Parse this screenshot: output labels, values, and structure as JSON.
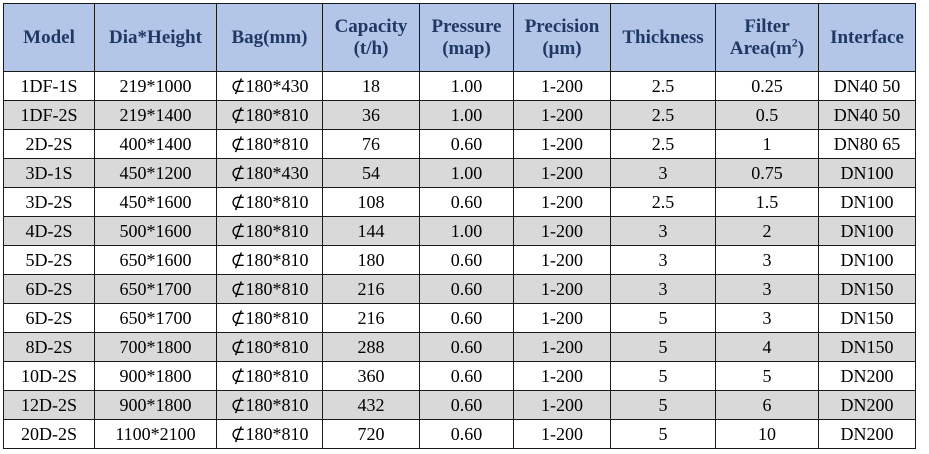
{
  "table": {
    "headers": [
      {
        "line1": "Model",
        "line2": ""
      },
      {
        "line1": "Dia*Height",
        "line2": ""
      },
      {
        "line1": "Bag(mm)",
        "line2": ""
      },
      {
        "line1": "Capacity",
        "line2": "(t/h)"
      },
      {
        "line1": "Pressure",
        "line2": "(map)"
      },
      {
        "line1": "Precision",
        "line2": "(μm)"
      },
      {
        "line1": "Thickness",
        "line2": ""
      },
      {
        "line1": "Filter",
        "line2": "Area(m",
        "sup": "2",
        "tail": ")"
      },
      {
        "line1": "Interface",
        "line2": ""
      }
    ],
    "rows": [
      [
        "1DF-1S",
        "219*1000",
        "⊄180*430",
        "18",
        "1.00",
        "1-200",
        "2.5",
        "0.25",
        "DN40  50"
      ],
      [
        "1DF-2S",
        "219*1400",
        "⊄180*810",
        "36",
        "1.00",
        "1-200",
        "2.5",
        "0.5",
        "DN40  50"
      ],
      [
        "2D-2S",
        "400*1400",
        "⊄180*810",
        "76",
        "0.60",
        "1-200",
        "2.5",
        "1",
        "DN80  65"
      ],
      [
        "3D-1S",
        "450*1200",
        "⊄180*430",
        "54",
        "1.00",
        "1-200",
        "3",
        "0.75",
        "DN100"
      ],
      [
        "3D-2S",
        "450*1600",
        "⊄180*810",
        "108",
        "0.60",
        "1-200",
        "2.5",
        "1.5",
        "DN100"
      ],
      [
        "4D-2S",
        "500*1600",
        "⊄180*810",
        "144",
        "1.00",
        "1-200",
        "3",
        "2",
        "DN100"
      ],
      [
        "5D-2S",
        "650*1600",
        "⊄180*810",
        "180",
        "0.60",
        "1-200",
        "3",
        "3",
        "DN100"
      ],
      [
        "6D-2S",
        "650*1700",
        "⊄180*810",
        "216",
        "0.60",
        "1-200",
        "3",
        "3",
        "DN150"
      ],
      [
        "6D-2S",
        "650*1700",
        "⊄180*810",
        "216",
        "0.60",
        "1-200",
        "5",
        "3",
        "DN150"
      ],
      [
        "8D-2S",
        "700*1800",
        "⊄180*810",
        "288",
        "0.60",
        "1-200",
        "5",
        "4",
        "DN150"
      ],
      [
        "10D-2S",
        "900*1800",
        "⊄180*810",
        "360",
        "0.60",
        "1-200",
        "5",
        "5",
        "DN200"
      ],
      [
        "12D-2S",
        "900*1800",
        "⊄180*810",
        "432",
        "0.60",
        "1-200",
        "5",
        "6",
        "DN200"
      ],
      [
        "20D-2S",
        "1100*2100",
        "⊄180*810",
        "720",
        "0.60",
        "1-200",
        "5",
        "10",
        "DN200"
      ]
    ]
  },
  "colors": {
    "header_bg": "#b4c6e7",
    "header_text": "#1f3864",
    "alt_row_bg": "#d9d9d9",
    "plain_row_bg": "#ffffff",
    "border": "#1a1a1a"
  }
}
